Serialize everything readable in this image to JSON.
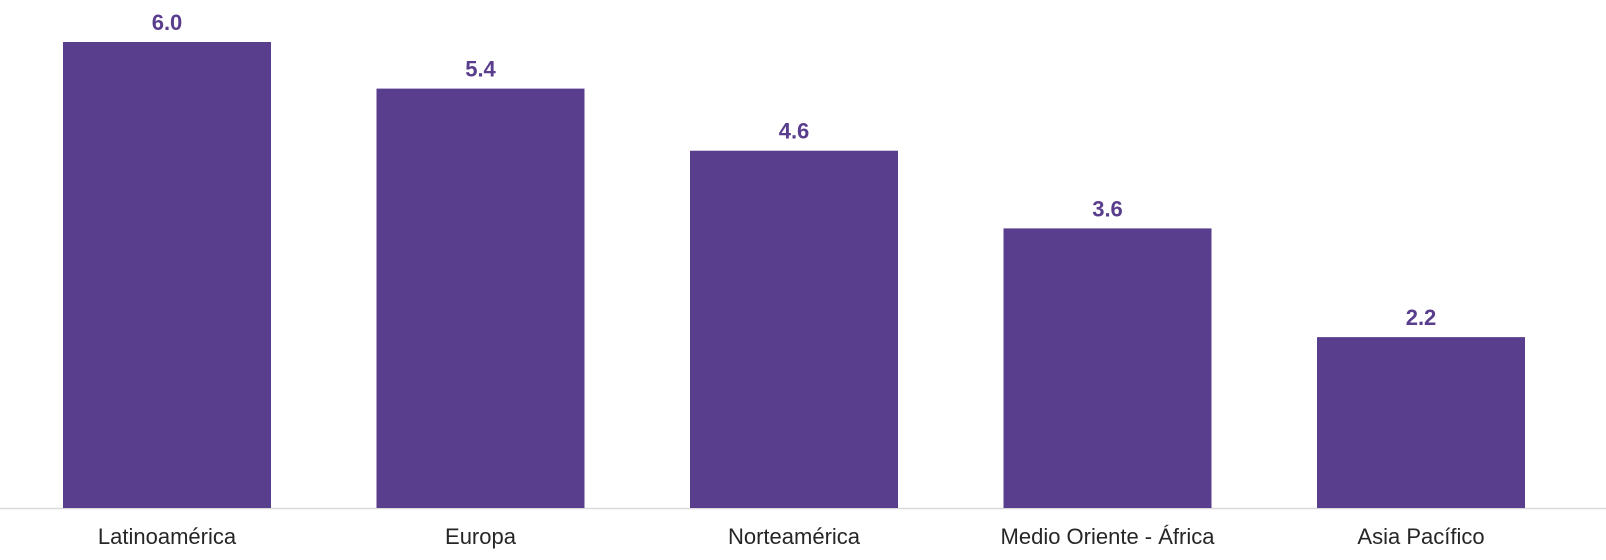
{
  "chart_data": {
    "type": "bar",
    "categories": [
      "Latinoamérica",
      "Europa",
      "Norteamérica",
      "Medio Oriente - África",
      "Asia Pacífico"
    ],
    "values": [
      6.0,
      5.4,
      4.6,
      3.6,
      2.2
    ],
    "value_labels": [
      "6.0",
      "5.4",
      "4.6",
      "3.6",
      "2.2"
    ],
    "title": "",
    "xlabel": "",
    "ylabel": "",
    "ylim": [
      0,
      6.0
    ],
    "grid": false,
    "legend": "none"
  },
  "colors": {
    "bar": "#5a3e8e",
    "value_label": "#5a3e8e",
    "axis": "#d9d9d9",
    "category_label": "#262626"
  }
}
